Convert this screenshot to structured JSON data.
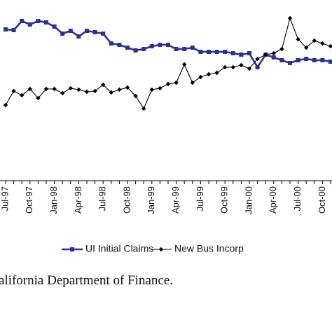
{
  "chart_data": {
    "type": "line",
    "categories": [
      "Jul-97",
      null,
      null,
      "Oct-97",
      null,
      null,
      "Jan-98",
      null,
      null,
      "Apr-98",
      null,
      null,
      "Jul-98",
      null,
      null,
      "Oct-98",
      null,
      null,
      "Jan-99",
      null,
      null,
      "Apr-99",
      null,
      null,
      "Jul-99",
      null,
      null,
      "Oct-99",
      null,
      null,
      "Jan-00",
      null,
      null,
      "Apr-00",
      null,
      null,
      "Jul-00",
      null,
      null,
      "Oct-00",
      null
    ],
    "series": [
      {
        "name": "UI Initial Claims",
        "color": "#2e3192",
        "marker": "square",
        "values": [
          216,
          215,
          228,
          223,
          228,
          226,
          220,
          210,
          214,
          206,
          214,
          212,
          210,
          196,
          194,
          190,
          186,
          188,
          192,
          194,
          194,
          188,
          188,
          190,
          184,
          184,
          184,
          184,
          182,
          180,
          182,
          162,
          180,
          176,
          172,
          168,
          172,
          174,
          172,
          172,
          170
        ]
      },
      {
        "name": "New Bus Incorp",
        "color": "#000000",
        "marker": "diamond",
        "values": [
          108,
          128,
          122,
          131,
          118,
          131,
          131,
          125,
          132,
          130,
          127,
          128,
          137,
          126,
          130,
          133,
          121,
          103,
          130,
          132,
          138,
          140,
          166,
          140,
          148,
          152,
          154,
          162,
          162,
          165,
          160,
          174,
          180,
          182,
          188,
          232,
          202,
          190,
          200,
          196,
          192
        ]
      }
    ],
    "ylim": [
      0,
      250
    ],
    "source": "alifornia Department of Finance."
  }
}
